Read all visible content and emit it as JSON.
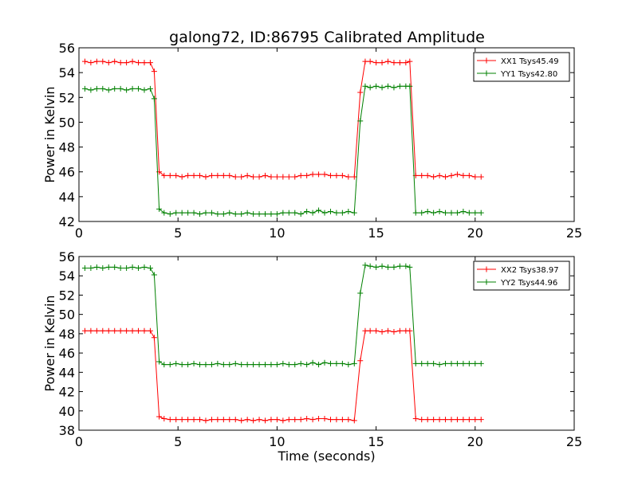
{
  "figure": {
    "title": "galong72, ID:86795 Calibrated Amplitude"
  },
  "chart_data": [
    {
      "type": "line",
      "title": "galong72, ID:86795 Calibrated Amplitude",
      "xlabel": "",
      "ylabel": "Power in Kelvin",
      "xlim": [
        0,
        25
      ],
      "ylim": [
        42,
        56
      ],
      "xticks": [
        0,
        5,
        10,
        15,
        20,
        25
      ],
      "yticks": [
        42,
        44,
        46,
        48,
        50,
        52,
        54,
        56
      ],
      "grid": false,
      "legend_position": "top-right",
      "x": [
        0.3,
        0.6,
        0.9,
        1.2,
        1.5,
        1.8,
        2.1,
        2.4,
        2.7,
        3.0,
        3.3,
        3.6,
        3.8,
        4.05,
        4.3,
        4.6,
        4.9,
        5.2,
        5.5,
        5.8,
        6.1,
        6.4,
        6.7,
        7.0,
        7.3,
        7.6,
        7.9,
        8.2,
        8.5,
        8.8,
        9.1,
        9.4,
        9.7,
        10.0,
        10.3,
        10.6,
        10.9,
        11.2,
        11.5,
        11.8,
        12.1,
        12.4,
        12.7,
        13.0,
        13.3,
        13.6,
        13.9,
        14.2,
        14.45,
        14.7,
        15.0,
        15.3,
        15.6,
        15.9,
        16.2,
        16.5,
        16.7,
        17.0,
        17.3,
        17.6,
        17.9,
        18.2,
        18.5,
        18.8,
        19.1,
        19.4,
        19.7,
        20.0,
        20.3
      ],
      "series": [
        {
          "name": "XX1 Tsys45.49",
          "color": "#ff0000",
          "values": [
            54.9,
            54.8,
            54.9,
            54.9,
            54.8,
            54.9,
            54.8,
            54.8,
            54.9,
            54.8,
            54.8,
            54.8,
            54.1,
            46.0,
            45.7,
            45.7,
            45.7,
            45.6,
            45.7,
            45.7,
            45.7,
            45.6,
            45.7,
            45.7,
            45.7,
            45.7,
            45.6,
            45.6,
            45.7,
            45.6,
            45.6,
            45.7,
            45.6,
            45.6,
            45.6,
            45.6,
            45.6,
            45.7,
            45.7,
            45.8,
            45.8,
            45.8,
            45.7,
            45.7,
            45.7,
            45.6,
            45.6,
            52.4,
            54.9,
            54.9,
            54.8,
            54.8,
            54.9,
            54.8,
            54.8,
            54.8,
            54.9,
            45.7,
            45.7,
            45.7,
            45.6,
            45.7,
            45.6,
            45.7,
            45.8,
            45.7,
            45.7,
            45.6,
            45.6
          ]
        },
        {
          "name": "YY1 Tsys42.80",
          "color": "#008000",
          "values": [
            52.7,
            52.6,
            52.7,
            52.7,
            52.6,
            52.7,
            52.7,
            52.6,
            52.7,
            52.7,
            52.6,
            52.7,
            51.9,
            43.0,
            42.7,
            42.6,
            42.7,
            42.7,
            42.7,
            42.7,
            42.6,
            42.7,
            42.7,
            42.6,
            42.6,
            42.7,
            42.6,
            42.6,
            42.7,
            42.6,
            42.6,
            42.6,
            42.6,
            42.6,
            42.7,
            42.7,
            42.7,
            42.6,
            42.8,
            42.7,
            42.9,
            42.7,
            42.8,
            42.7,
            42.7,
            42.8,
            42.7,
            50.1,
            52.9,
            52.8,
            52.9,
            52.8,
            52.9,
            52.8,
            52.9,
            52.9,
            52.9,
            42.7,
            42.7,
            42.8,
            42.7,
            42.8,
            42.7,
            42.7,
            42.7,
            42.8,
            42.7,
            42.7,
            42.7
          ]
        }
      ]
    },
    {
      "type": "line",
      "title": "",
      "xlabel": "Time (seconds)",
      "ylabel": "Power in Kelvin",
      "xlim": [
        0,
        25
      ],
      "ylim": [
        38,
        56
      ],
      "xticks": [
        0,
        5,
        10,
        15,
        20,
        25
      ],
      "yticks": [
        38,
        40,
        42,
        44,
        46,
        48,
        50,
        52,
        54,
        56
      ],
      "grid": false,
      "legend_position": "top-right",
      "x": [
        0.3,
        0.6,
        0.9,
        1.2,
        1.5,
        1.8,
        2.1,
        2.4,
        2.7,
        3.0,
        3.3,
        3.6,
        3.8,
        4.05,
        4.3,
        4.6,
        4.9,
        5.2,
        5.5,
        5.8,
        6.1,
        6.4,
        6.7,
        7.0,
        7.3,
        7.6,
        7.9,
        8.2,
        8.5,
        8.8,
        9.1,
        9.4,
        9.7,
        10.0,
        10.3,
        10.6,
        10.9,
        11.2,
        11.5,
        11.8,
        12.1,
        12.4,
        12.7,
        13.0,
        13.3,
        13.6,
        13.9,
        14.2,
        14.45,
        14.7,
        15.0,
        15.3,
        15.6,
        15.9,
        16.2,
        16.5,
        16.7,
        17.0,
        17.3,
        17.6,
        17.9,
        18.2,
        18.5,
        18.8,
        19.1,
        19.4,
        19.7,
        20.0,
        20.3
      ],
      "series": [
        {
          "name": "XX2 Tsys38.97",
          "color": "#ff0000",
          "values": [
            48.3,
            48.3,
            48.3,
            48.3,
            48.3,
            48.3,
            48.3,
            48.3,
            48.3,
            48.3,
            48.3,
            48.3,
            47.6,
            39.4,
            39.2,
            39.1,
            39.1,
            39.1,
            39.1,
            39.1,
            39.1,
            39.0,
            39.1,
            39.1,
            39.1,
            39.1,
            39.1,
            39.0,
            39.1,
            39.0,
            39.1,
            39.0,
            39.1,
            39.1,
            39.0,
            39.1,
            39.1,
            39.1,
            39.2,
            39.1,
            39.2,
            39.2,
            39.1,
            39.1,
            39.1,
            39.1,
            39.0,
            45.2,
            48.3,
            48.3,
            48.3,
            48.2,
            48.3,
            48.2,
            48.3,
            48.3,
            48.3,
            39.2,
            39.1,
            39.1,
            39.1,
            39.1,
            39.1,
            39.1,
            39.1,
            39.1,
            39.1,
            39.1,
            39.1
          ]
        },
        {
          "name": "YY2 Tsys44.96",
          "color": "#008000",
          "values": [
            54.8,
            54.8,
            54.9,
            54.8,
            54.9,
            54.9,
            54.8,
            54.8,
            54.9,
            54.8,
            54.9,
            54.8,
            54.1,
            45.1,
            44.8,
            44.8,
            44.9,
            44.8,
            44.8,
            44.9,
            44.8,
            44.8,
            44.8,
            44.9,
            44.8,
            44.8,
            44.9,
            44.8,
            44.8,
            44.8,
            44.8,
            44.8,
            44.8,
            44.8,
            44.9,
            44.8,
            44.8,
            44.9,
            44.8,
            45.0,
            44.8,
            45.0,
            44.9,
            44.9,
            44.9,
            44.8,
            44.9,
            52.2,
            55.1,
            55.0,
            54.9,
            55.0,
            54.9,
            54.9,
            55.0,
            55.0,
            54.9,
            44.9,
            44.9,
            44.9,
            44.9,
            44.8,
            44.9,
            44.9,
            44.9,
            44.9,
            44.9,
            44.9,
            44.9
          ]
        }
      ]
    }
  ]
}
